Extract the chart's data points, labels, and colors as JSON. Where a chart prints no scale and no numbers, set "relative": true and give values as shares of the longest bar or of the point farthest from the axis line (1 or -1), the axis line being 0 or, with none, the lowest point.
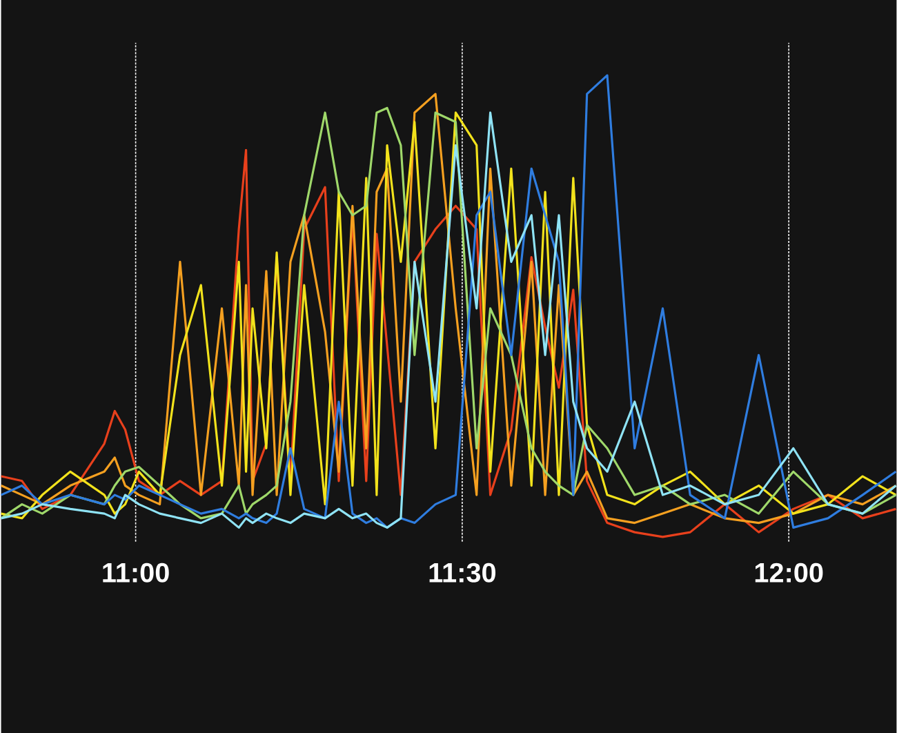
{
  "chart_data": {
    "type": "line",
    "relative": true,
    "grid": "x",
    "xlim": [
      10.794,
      12.165
    ],
    "xticks": [
      {
        "value": 11,
        "label": "11:00"
      },
      {
        "value": 11.5,
        "label": "11:30"
      },
      {
        "value": 12,
        "label": "12:00"
      }
    ],
    "x": [
      10.794,
      10.826,
      10.857,
      10.9,
      10.952,
      10.968,
      10.984,
      11.005,
      11.037,
      11.068,
      11.1,
      11.132,
      11.158,
      11.169,
      11.179,
      11.2,
      11.216,
      11.237,
      11.258,
      11.29,
      11.311,
      11.332,
      11.353,
      11.369,
      11.385,
      11.406,
      11.427,
      11.459,
      11.49,
      11.522,
      11.543,
      11.575,
      11.606,
      11.627,
      11.648,
      11.67,
      11.691,
      11.722,
      11.764,
      11.807,
      11.849,
      11.902,
      11.954,
      12.007,
      12.06,
      12.113,
      12.164
    ],
    "series": [
      {
        "color": "#e8401c",
        "values": [
          0.14,
          0.13,
          0.07,
          0.1,
          0.21,
          0.28,
          0.24,
          0.13,
          0.1,
          0.13,
          0.1,
          0.13,
          0.67,
          0.84,
          0.13,
          0.21,
          0.61,
          0.13,
          0.67,
          0.76,
          0.13,
          0.7,
          0.13,
          0.66,
          0.42,
          0.1,
          0.6,
          0.67,
          0.72,
          0.67,
          0.1,
          0.24,
          0.61,
          0.46,
          0.33,
          0.54,
          0.13,
          0.04,
          0.02,
          0.01,
          0.02,
          0.08,
          0.02,
          0.07,
          0.1,
          0.05,
          0.07
        ]
      },
      {
        "color": "#f5a020",
        "values": [
          0.12,
          0.1,
          0.08,
          0.12,
          0.15,
          0.18,
          0.12,
          0.1,
          0.08,
          0.6,
          0.1,
          0.5,
          0.12,
          0.55,
          0.1,
          0.58,
          0.1,
          0.6,
          0.7,
          0.45,
          0.15,
          0.72,
          0.2,
          0.75,
          0.8,
          0.3,
          0.92,
          0.96,
          0.5,
          0.1,
          0.8,
          0.12,
          0.6,
          0.1,
          0.55,
          0.1,
          0.15,
          0.05,
          0.04,
          0.06,
          0.08,
          0.05,
          0.04,
          0.06,
          0.1,
          0.08,
          0.12
        ]
      },
      {
        "color": "#f2e21c",
        "values": [
          0.06,
          0.05,
          0.1,
          0.15,
          0.1,
          0.06,
          0.08,
          0.15,
          0.1,
          0.4,
          0.55,
          0.12,
          0.6,
          0.15,
          0.5,
          0.2,
          0.62,
          0.1,
          0.55,
          0.08,
          0.75,
          0.12,
          0.78,
          0.1,
          0.85,
          0.6,
          0.9,
          0.2,
          0.92,
          0.85,
          0.15,
          0.8,
          0.12,
          0.75,
          0.1,
          0.78,
          0.25,
          0.1,
          0.08,
          0.12,
          0.15,
          0.08,
          0.12,
          0.06,
          0.08,
          0.14,
          0.1
        ]
      },
      {
        "color": "#9fd86a",
        "values": [
          0.05,
          0.08,
          0.06,
          0.1,
          0.08,
          0.12,
          0.15,
          0.16,
          0.12,
          0.08,
          0.05,
          0.06,
          0.12,
          0.06,
          0.08,
          0.1,
          0.12,
          0.3,
          0.7,
          0.92,
          0.75,
          0.7,
          0.72,
          0.92,
          0.93,
          0.85,
          0.4,
          0.92,
          0.9,
          0.2,
          0.5,
          0.4,
          0.2,
          0.15,
          0.12,
          0.1,
          0.25,
          0.2,
          0.1,
          0.12,
          0.08,
          0.1,
          0.06,
          0.15,
          0.08,
          0.06,
          0.1
        ]
      },
      {
        "color": "#2f7de0",
        "values": [
          0.1,
          0.12,
          0.08,
          0.1,
          0.08,
          0.1,
          0.09,
          0.12,
          0.1,
          0.08,
          0.06,
          0.07,
          0.05,
          0.06,
          0.05,
          0.04,
          0.06,
          0.2,
          0.07,
          0.05,
          0.3,
          0.06,
          0.04,
          0.05,
          0.03,
          0.05,
          0.04,
          0.08,
          0.1,
          0.7,
          0.75,
          0.4,
          0.8,
          0.7,
          0.6,
          0.1,
          0.96,
          1.0,
          0.2,
          0.5,
          0.1,
          0.05,
          0.4,
          0.03,
          0.05,
          0.1,
          0.15
        ]
      },
      {
        "color": "#8fe3f5",
        "values": [
          0.05,
          0.06,
          0.08,
          0.07,
          0.06,
          0.05,
          0.1,
          0.08,
          0.06,
          0.05,
          0.04,
          0.06,
          0.03,
          0.05,
          0.04,
          0.06,
          0.05,
          0.04,
          0.06,
          0.05,
          0.07,
          0.05,
          0.06,
          0.04,
          0.03,
          0.05,
          0.6,
          0.3,
          0.85,
          0.5,
          0.92,
          0.6,
          0.7,
          0.4,
          0.7,
          0.3,
          0.2,
          0.15,
          0.3,
          0.1,
          0.12,
          0.08,
          0.1,
          0.2,
          0.08,
          0.06,
          0.12
        ]
      }
    ]
  }
}
